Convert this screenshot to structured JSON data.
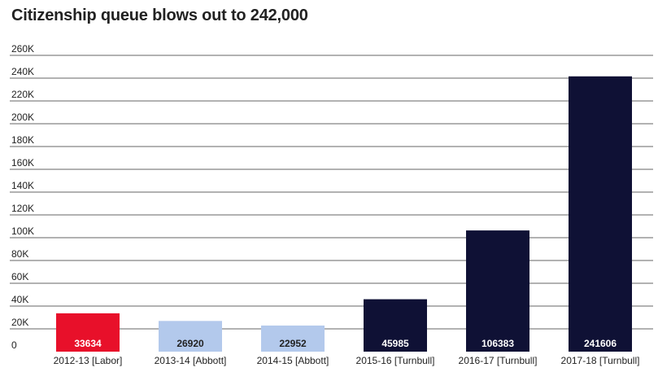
{
  "chart_data": {
    "type": "bar",
    "title": "Citizenship queue blows out to 242,000",
    "xlabel": "",
    "ylabel": "",
    "categories": [
      "2012-13 [Labor]",
      "2013-14 [Abbott]",
      "2014-15 [Abbott]",
      "2015-16 [Turnbull]",
      "2016-17 [Turnbull]",
      "2017-18 [Turnbull]"
    ],
    "values": [
      33634,
      26920,
      22952,
      45985,
      106383,
      241606
    ],
    "value_labels": [
      "33634",
      "26920",
      "22952",
      "45985",
      "106383",
      "241606"
    ],
    "bar_colors": [
      "#e8102a",
      "#b3c9ec",
      "#b3c9ec",
      "#0f1135",
      "#0f1135",
      "#0f1135"
    ],
    "value_label_colors": [
      "#ffffff",
      "#222222",
      "#222222",
      "#ffffff",
      "#ffffff",
      "#ffffff"
    ],
    "ylim": [
      0,
      260000
    ],
    "y_ticks": [
      0,
      20000,
      40000,
      60000,
      80000,
      100000,
      120000,
      140000,
      160000,
      180000,
      200000,
      220000,
      240000,
      260000
    ],
    "y_tick_labels": [
      "0",
      "20K",
      "40K",
      "60K",
      "80K",
      "100K",
      "120K",
      "140K",
      "160K",
      "180K",
      "200K",
      "220K",
      "240K",
      "260K"
    ],
    "grid": true,
    "legend": "none",
    "gridline_color": "#333333"
  }
}
